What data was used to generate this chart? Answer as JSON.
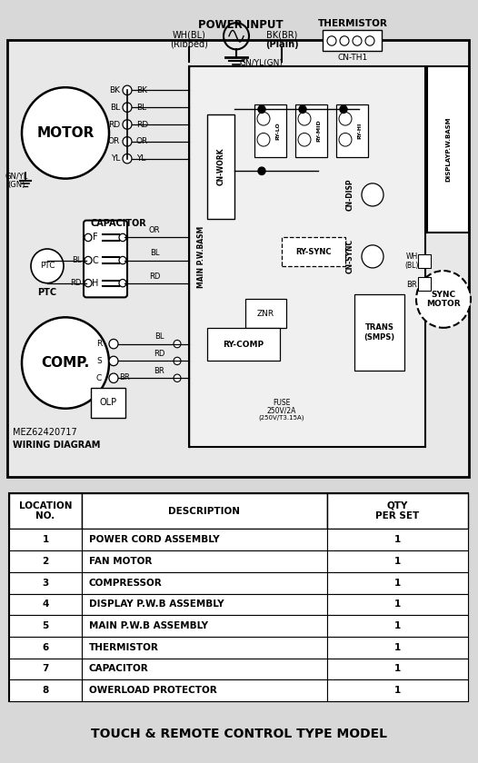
{
  "bg_color": "#e8e8e8",
  "diagram_bg": "#e0e0e0",
  "power_input": "POWER INPUT",
  "wh_bl": "WH(BL)",
  "bk_br": "BK(BR)",
  "ribbed": "(Ribbed)",
  "plain": "(Plain)",
  "gn_yl_gn": "GN/YL(GN)",
  "thermistor": "THERMISTOR",
  "cn_th1": "CN-TH1",
  "motor": "MOTOR",
  "capacitor": "CAPACITOR",
  "comp": "COMP.",
  "ptc": "PTC",
  "olp": "OLP",
  "gn_yl_gn_side": "GN/YL\n(GN)",
  "main_pwb": "MAIN P.W.BASM",
  "display_pwb": "DISPLAYP.W.BASM",
  "sync_motor": "SYNC\nMOTOR",
  "wiring_id": "MEZ62420717",
  "wiring_diag": "WIRING DIAGRAM",
  "cn_work": "CN-WORK",
  "ry_comp": "RY-COMP",
  "ry_sync": "RY-SYNC",
  "ry_lo": "RY-LO",
  "ry_mid": "RY-MID",
  "ry_hi": "RY-HI",
  "cn_disp": "CN-DISP",
  "cn_sync": "CN-SYNC",
  "znr": "ZNR",
  "trans": "TRANS\n(SMPS)",
  "fuse_line1": "FUSE",
  "fuse_line2": "250V/2A",
  "fuse_line3": "(250V/T3.15A)",
  "motor_wires": [
    "BK",
    "BL",
    "RD",
    "OR",
    "YL"
  ],
  "wh_bl_sync": "WH\n(BL)",
  "br_sync": "BR",
  "table_col1_header": "LOCATION\nNO.",
  "table_col2_header": "DESCRIPTION",
  "table_col3_header": "QTY\nPER SET",
  "table_rows": [
    [
      "1",
      "POWER CORD ASSEMBLY",
      "1"
    ],
    [
      "2",
      "FAN MOTOR",
      "1"
    ],
    [
      "3",
      "COMPRESSOR",
      "1"
    ],
    [
      "4",
      "DISPLAY P.W.B ASSEMBLY",
      "1"
    ],
    [
      "5",
      "MAIN P.W.B ASSEMBLY",
      "1"
    ],
    [
      "6",
      "THERMISTOR",
      "1"
    ],
    [
      "7",
      "CAPACITOR",
      "1"
    ],
    [
      "8",
      "OWERLOAD PROTECTOR",
      "1"
    ]
  ],
  "footer": "TOUCH & REMOTE CONTROL TYPE MODEL"
}
